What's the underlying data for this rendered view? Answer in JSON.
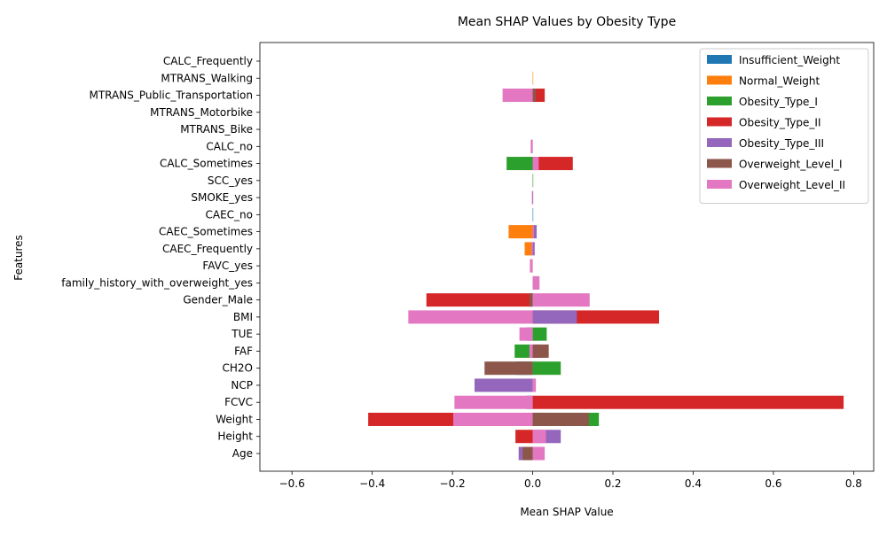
{
  "chart_data": {
    "type": "bar",
    "orientation": "horizontal",
    "stacked": true,
    "title": "Mean SHAP Values by Obesity Type",
    "xlabel": "Mean SHAP Value",
    "ylabel": "Features",
    "xlim": [
      -0.68,
      0.85
    ],
    "xticks": [
      -0.6,
      -0.4,
      -0.2,
      0.0,
      0.2,
      0.4,
      0.6,
      0.8
    ],
    "xtick_labels": [
      "−0.6",
      "−0.4",
      "−0.2",
      "0.0",
      "0.2",
      "0.4",
      "0.6",
      "0.8"
    ],
    "grid": false,
    "legend_position": "top-right",
    "categories": [
      "Age",
      "Height",
      "Weight",
      "FCVC",
      "NCP",
      "CH2O",
      "FAF",
      "TUE",
      "BMI",
      "Gender_Male",
      "family_history_with_overweight_yes",
      "FAVC_yes",
      "CAEC_Frequently",
      "CAEC_Sometimes",
      "CAEC_no",
      "SMOKE_yes",
      "SCC_yes",
      "CALC_Sometimes",
      "CALC_no",
      "MTRANS_Bike",
      "MTRANS_Motorbike",
      "MTRANS_Public_Transportation",
      "MTRANS_Walking",
      "CALC_Frequently"
    ],
    "series": [
      {
        "name": "Insufficient_Weight",
        "color": "#1f77b4",
        "values": [
          0,
          0,
          0.058,
          -0.016,
          0,
          -0.04,
          0,
          -0.015,
          0,
          0,
          0,
          0,
          0,
          0,
          0.001,
          0,
          0,
          0,
          -0.003,
          0,
          0,
          0,
          0,
          0
        ]
      },
      {
        "name": "Normal_Weight",
        "color": "#ff7f0e",
        "values": [
          0,
          0,
          0.033,
          0,
          0,
          0,
          0,
          0,
          0,
          0,
          0,
          -0.003,
          -0.02,
          -0.06,
          0,
          0,
          0,
          -0.023,
          0,
          0,
          0,
          0,
          0.001,
          0
        ]
      },
      {
        "name": "Obesity_Type_I",
        "color": "#2ca02c",
        "values": [
          0.025,
          0,
          0.165,
          0,
          0,
          0.07,
          -0.045,
          0.035,
          0,
          0,
          0.015,
          0,
          0,
          0,
          0,
          0,
          0.001,
          -0.065,
          0,
          0,
          0,
          0,
          0,
          0
        ]
      },
      {
        "name": "Obesity_Type_II",
        "color": "#d62728",
        "values": [
          0,
          -0.043,
          -0.41,
          0.775,
          0,
          0,
          0.02,
          0,
          0.315,
          -0.265,
          0,
          0,
          0,
          0,
          0,
          0,
          0,
          0.1,
          0,
          0,
          0,
          0.03,
          0,
          0
        ]
      },
      {
        "name": "Obesity_Type_III",
        "color": "#9467bd",
        "values": [
          -0.035,
          0.07,
          0,
          0,
          -0.145,
          0,
          0,
          0,
          0.11,
          0,
          0,
          0,
          0.005,
          0.01,
          0,
          0.001,
          0,
          0,
          -0.004,
          0,
          0,
          0,
          0,
          0
        ]
      },
      {
        "name": "Overweight_Level_I",
        "color": "#8c564b",
        "values": [
          -0.025,
          0,
          0.14,
          0,
          0,
          -0.12,
          0.04,
          0,
          0,
          -0.008,
          0,
          0,
          0,
          0,
          0,
          0,
          0,
          0,
          0,
          0,
          0,
          0.008,
          0,
          0
        ]
      },
      {
        "name": "Overweight_Level_II",
        "color": "#e377c2",
        "values": [
          0.03,
          0.033,
          -0.198,
          -0.195,
          0.008,
          0,
          -0.008,
          -0.033,
          -0.31,
          0.142,
          0.017,
          -0.007,
          -0.003,
          0.003,
          0,
          -0.002,
          0,
          0.015,
          -0.005,
          0,
          0,
          -0.075,
          0,
          0
        ]
      }
    ]
  }
}
